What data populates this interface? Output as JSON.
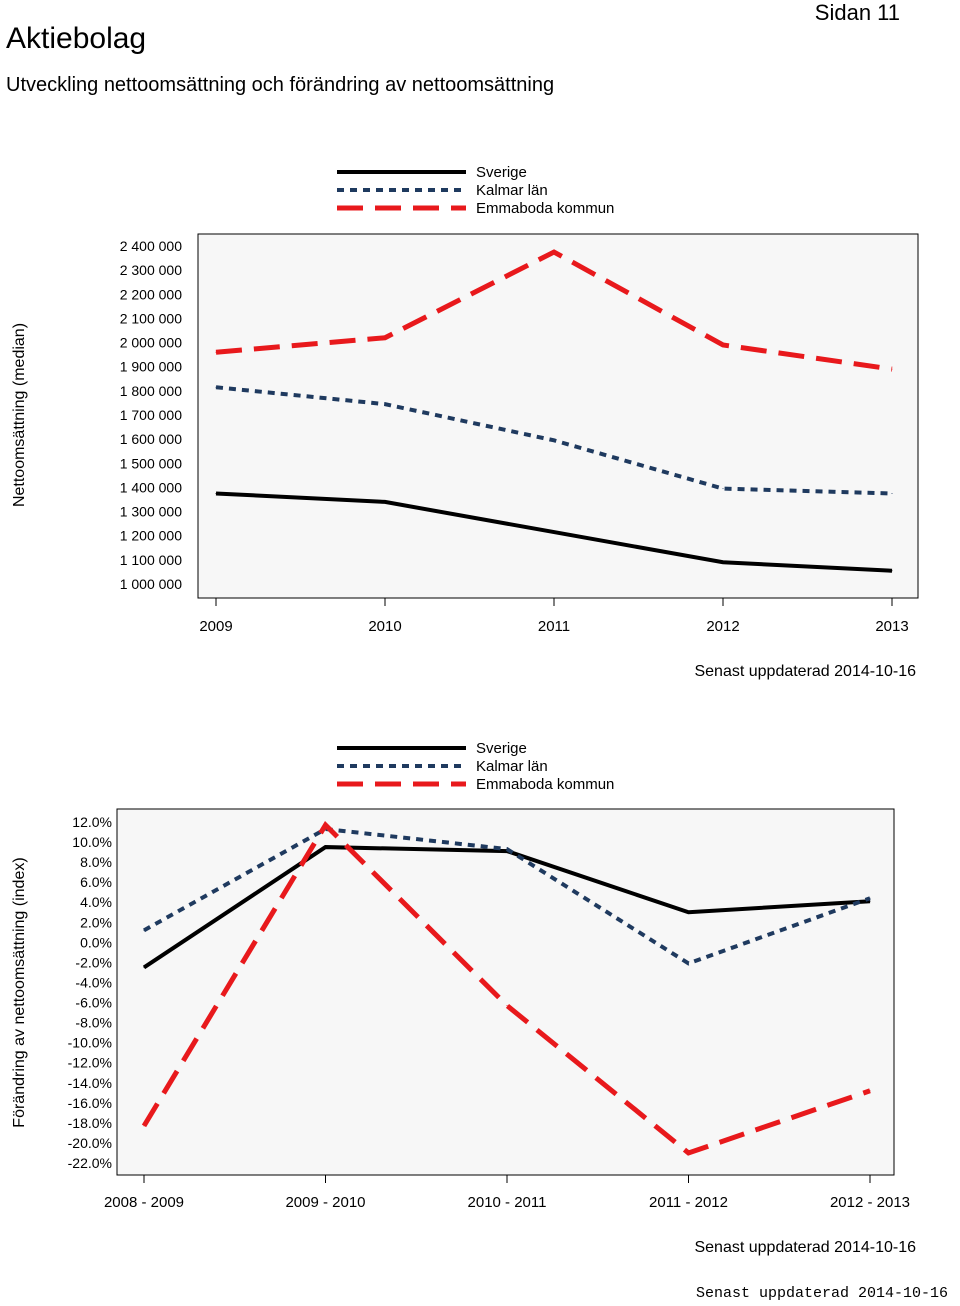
{
  "header": {
    "title": "Aktiebolag",
    "page": "Sidan 11",
    "subtitle": "Utveckling nettoomsättning och förändring av nettoomsättning"
  },
  "chart_data": [
    {
      "type": "line",
      "ylabel": "Nettoomsättning (median)",
      "ylim": [
        1000000,
        2400000
      ],
      "y_ticks": [
        2400000,
        2300000,
        2200000,
        2100000,
        2000000,
        1900000,
        1800000,
        1700000,
        1600000,
        1500000,
        1400000,
        1300000,
        1200000,
        1100000,
        1000000
      ],
      "y_tick_labels": [
        "2 400 000",
        "2 300 000",
        "2 200 000",
        "2 100 000",
        "2 000 000",
        "1 900 000",
        "1 800 000",
        "1 700 000",
        "1 600 000",
        "1 500 000",
        "1 400 000",
        "1 300 000",
        "1 200 000",
        "1 100 000",
        "1 000 000"
      ],
      "categories": [
        "2009",
        "2010",
        "2011",
        "2012",
        "2013"
      ],
      "legend_position": "top",
      "series": [
        {
          "name": "Sverige",
          "color": "#000000",
          "style": "solid",
          "values": [
            1375000,
            1340000,
            1215000,
            1090000,
            1055000
          ]
        },
        {
          "name": "Kalmar län",
          "color": "#1f3a5f",
          "style": "dotted",
          "values": [
            1815000,
            1745000,
            1595000,
            1395000,
            1375000
          ]
        },
        {
          "name": "Emmaboda kommun",
          "color": "#e8191c",
          "style": "dashed",
          "values": [
            1960000,
            2020000,
            2375000,
            1990000,
            1890000
          ]
        }
      ],
      "updated": "Senast uppdaterad 2014-10-16"
    },
    {
      "type": "line",
      "ylabel": "Förändring av nettoomsättning (index)",
      "ylim": [
        -22,
        12
      ],
      "y_ticks": [
        12,
        10,
        8,
        6,
        4,
        2,
        0,
        -2,
        -4,
        -6,
        -8,
        -10,
        -12,
        -14,
        -16,
        -18,
        -20,
        -22
      ],
      "y_tick_labels": [
        "12.0%",
        "10.0%",
        "8.0%",
        "6.0%",
        "4.0%",
        "2.0%",
        "0.0%",
        "-2.0%",
        "-4.0%",
        "-6.0%",
        "-8.0%",
        "-10.0%",
        "-12.0%",
        "-14.0%",
        "-16.0%",
        "-18.0%",
        "-20.0%",
        "-22.0%"
      ],
      "categories": [
        "2008 - 2009",
        "2009 - 2010",
        "2010 - 2011",
        "2011 - 2012",
        "2012 - 2013"
      ],
      "legend_position": "top",
      "series": [
        {
          "name": "Sverige",
          "color": "#000000",
          "style": "solid",
          "values": [
            -2.5,
            9.5,
            9.1,
            3.0,
            4.1
          ]
        },
        {
          "name": "Kalmar län",
          "color": "#1f3a5f",
          "style": "dotted",
          "values": [
            1.2,
            11.3,
            9.3,
            -2.1,
            4.4
          ]
        },
        {
          "name": "Emmaboda kommun",
          "color": "#e8191c",
          "style": "dashed",
          "values": [
            -18.3,
            11.7,
            -6.3,
            -21.0,
            -14.8
          ]
        }
      ],
      "updated": "Senast uppdaterad 2014-10-16"
    }
  ],
  "footer": {
    "text": "Senast uppdaterad 2014-10-16"
  }
}
